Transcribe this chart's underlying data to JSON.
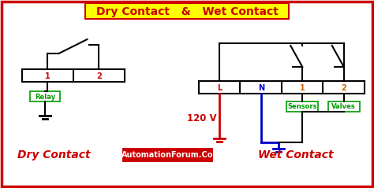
{
  "title": "Dry Contact   &   Wet Contact",
  "title_bg": "#FFFF00",
  "title_color": "#CC0000",
  "border_color": "#CC0000",
  "bg_color": "#FFFFFF",
  "dry_label": "Dry Contact",
  "wet_label": "Wet Contact",
  "relay_label": "Relay",
  "sensors_label": "Sensors",
  "valves_label": "Valves",
  "voltage_label": "120 V",
  "watermark": "AutomationForum.Co",
  "watermark_bg": "#CC0000",
  "watermark_color": "#FFFFFF",
  "green": "#009900",
  "orange": "#CC6600",
  "blue_color": "#0000CC",
  "red_color": "#CC0000",
  "black": "#000000"
}
